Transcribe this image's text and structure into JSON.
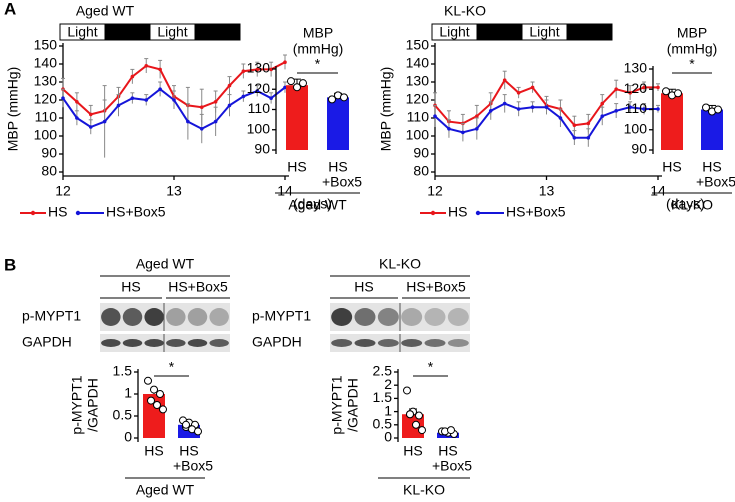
{
  "panel_labels": [
    "A",
    "B"
  ],
  "chart_data": [
    {
      "type": "line",
      "title": "Aged WT",
      "light_dark": [
        "Light",
        "Dark",
        "Light",
        "Dark"
      ],
      "ylabel": "MBP (mmHg)",
      "xlabel": "(days)",
      "x": [
        12,
        12.125,
        12.25,
        12.375,
        12.5,
        12.625,
        12.75,
        12.875,
        13,
        13.125,
        13.25,
        13.375,
        13.5,
        13.625,
        13.75,
        13.875,
        14
      ],
      "xlim": [
        12,
        14
      ],
      "xticks": [
        12,
        13,
        14
      ],
      "ylim": [
        80,
        150
      ],
      "yticks": [
        80,
        90,
        100,
        110,
        120,
        130,
        140,
        150
      ],
      "series": [
        {
          "name": "HS",
          "color": "#e8161b",
          "values": [
            126,
            119,
            112,
            114,
            122,
            133,
            139,
            137,
            122,
            117,
            116,
            119,
            128,
            136,
            137,
            137,
            141
          ],
          "errors": [
            6,
            5,
            5,
            6,
            5,
            4,
            4,
            5,
            6,
            10,
            10,
            6,
            5,
            4,
            4,
            4,
            4
          ]
        },
        {
          "name": "HS+Box5",
          "color": "#1515d9",
          "values": [
            121,
            110,
            105,
            108,
            117,
            121,
            120,
            126,
            120,
            108,
            104,
            108,
            117,
            122,
            125,
            121,
            127
          ],
          "errors": [
            5,
            4,
            4,
            20,
            6,
            3,
            3,
            4,
            5,
            10,
            8,
            8,
            6,
            3,
            3,
            3,
            3
          ]
        }
      ]
    },
    {
      "type": "bar",
      "title": [
        "MBP",
        "(mmHg)"
      ],
      "categories": [
        [
          "HS"
        ],
        [
          "HS",
          "+Box5"
        ]
      ],
      "colors": [
        "#ee1c1c",
        "#1a1ae6"
      ],
      "values": [
        122,
        116
      ],
      "errors": [
        3,
        2
      ],
      "points": [
        [
          124,
          121,
          123
        ],
        [
          115,
          117,
          116
        ]
      ],
      "significance": "*",
      "xlabel": "Aged WT",
      "ylim": [
        90,
        130
      ],
      "yticks": [
        90,
        100,
        110,
        120,
        130
      ]
    },
    {
      "type": "line",
      "title": "KL-KO",
      "light_dark": [
        "Light",
        "Dark",
        "Light",
        "Dark"
      ],
      "ylabel": "MBP (mmHg)",
      "xlabel": "(days)",
      "x": [
        12,
        12.125,
        12.25,
        12.375,
        12.5,
        12.625,
        12.75,
        12.875,
        13,
        13.125,
        13.25,
        13.375,
        13.5,
        13.625,
        13.75,
        13.875,
        14
      ],
      "xlim": [
        12,
        14
      ],
      "xticks": [
        12,
        13,
        14
      ],
      "ylim": [
        80,
        150
      ],
      "yticks": [
        80,
        90,
        100,
        110,
        120,
        130,
        140,
        150
      ],
      "series": [
        {
          "name": "HS",
          "color": "#e8161b",
          "values": [
            117,
            108,
            107,
            111,
            118,
            131,
            124,
            127,
            117,
            115,
            106,
            107,
            118,
            126,
            124,
            127,
            127
          ],
          "errors": [
            7,
            6,
            5,
            6,
            6,
            5,
            3,
            3,
            5,
            5,
            5,
            5,
            5,
            5,
            4,
            3,
            2
          ]
        },
        {
          "name": "HS+Box5",
          "color": "#1515d9",
          "values": [
            111,
            104,
            102,
            104,
            114,
            118,
            115,
            116,
            116,
            110,
            99,
            99,
            111,
            114,
            116,
            115,
            115
          ],
          "errors": [
            6,
            5,
            5,
            6,
            5,
            5,
            4,
            3,
            4,
            5,
            4,
            5,
            5,
            4,
            3,
            3,
            2
          ]
        }
      ]
    },
    {
      "type": "bar",
      "title": [
        "MBP",
        "(mmHg)"
      ],
      "categories": [
        [
          "HS"
        ],
        [
          "HS",
          "+Box5"
        ]
      ],
      "colors": [
        "#ee1c1c",
        "#1a1ae6"
      ],
      "values": [
        118,
        110
      ],
      "errors": [
        2,
        2
      ],
      "points": [
        [
          119,
          117,
          118
        ],
        [
          111,
          109,
          110
        ]
      ],
      "significance": "*",
      "xlabel": "KL-KO",
      "ylim": [
        90,
        130
      ],
      "yticks": [
        90,
        100,
        110,
        120,
        130
      ]
    },
    {
      "type": "bar",
      "ylabel": [
        "p-MYPT1",
        "/GAPDH"
      ],
      "categories": [
        [
          "HS"
        ],
        [
          "HS",
          "+Box5"
        ]
      ],
      "colors": [
        "#ee1c1c",
        "#1a1ae6"
      ],
      "values": [
        1.0,
        0.3
      ],
      "errors": [
        0.1,
        0.05
      ],
      "points": [
        [
          1.3,
          1.1,
          1.0,
          0.85,
          0.75,
          0.65
        ],
        [
          0.4,
          0.35,
          0.3,
          0.25,
          0.2,
          0.15,
          0.3
        ]
      ],
      "significance": "*",
      "xlabel": "Aged WT",
      "ylim": [
        0,
        1.5
      ],
      "yticks": [
        0,
        0.5,
        1,
        1.5
      ]
    },
    {
      "type": "bar",
      "ylabel": [
        "p-MYPT1",
        "/GAPDH"
      ],
      "categories": [
        [
          "HS"
        ],
        [
          "HS",
          "+Box5"
        ]
      ],
      "colors": [
        "#ee1c1c",
        "#1a1ae6"
      ],
      "values": [
        0.9,
        0.2
      ],
      "errors": [
        0.2,
        0.04
      ],
      "points": [
        [
          1.8,
          1.0,
          0.85,
          0.9,
          0.5,
          0.3,
          0.9
        ],
        [
          0.25,
          0.2,
          0.15,
          0.25,
          0.3
        ]
      ],
      "significance": "*",
      "xlabel": "KL-KO",
      "ylim": [
        0,
        2.5
      ],
      "yticks": [
        0,
        0.5,
        1,
        1.5,
        2,
        2.5
      ]
    }
  ],
  "blots": [
    {
      "title": "Aged WT",
      "groups": [
        "HS",
        "HS+Box5"
      ],
      "rows": [
        "p-MYPT1",
        "GAPDH"
      ]
    },
    {
      "title": "KL-KO",
      "groups": [
        "HS",
        "HS+Box5"
      ],
      "rows": [
        "p-MYPT1",
        "GAPDH"
      ]
    }
  ]
}
